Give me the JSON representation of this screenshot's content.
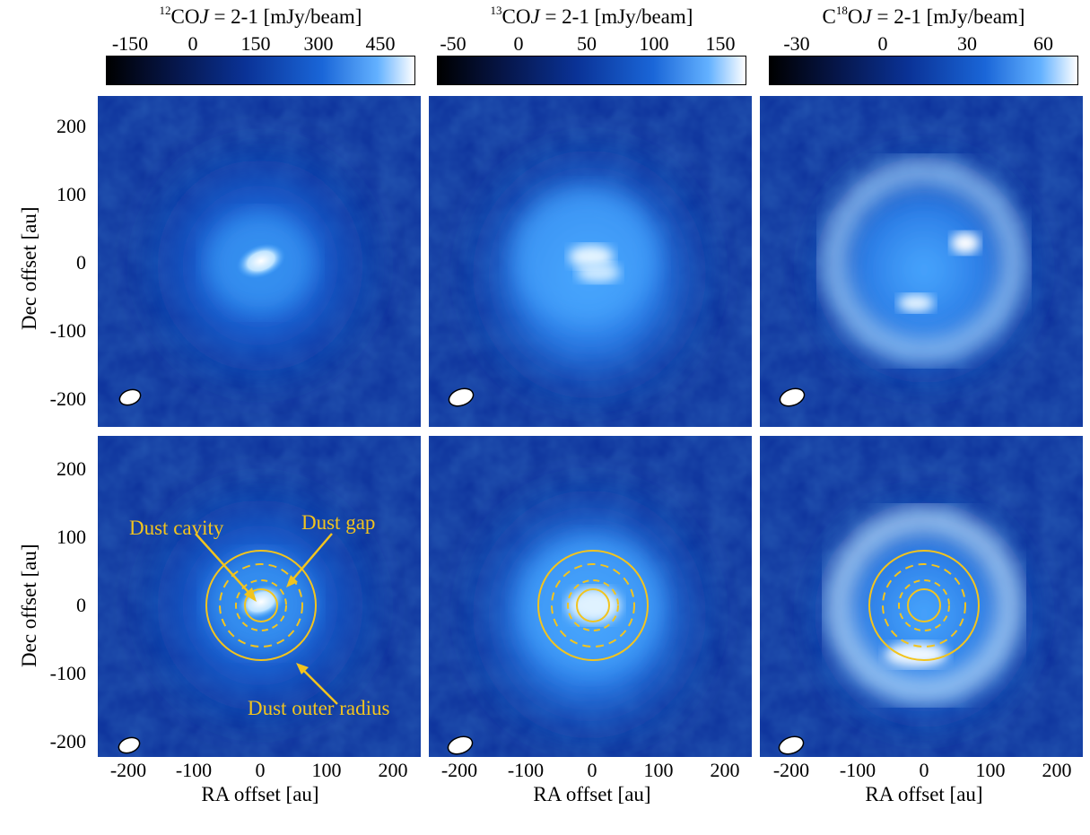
{
  "colorbars": [
    {
      "iso": "12",
      "mol_pre": "",
      "mol_post": "CO",
      "line": "J",
      "trans": "= 2-1 [mJy/beam]",
      "ticks": [
        "-150",
        "0",
        "150",
        "300",
        "450"
      ]
    },
    {
      "iso": "13",
      "mol_pre": "",
      "mol_post": "CO",
      "line": "J",
      "trans": "= 2-1 [mJy/beam]",
      "ticks": [
        "-50",
        "0",
        "50",
        "100",
        "150"
      ]
    },
    {
      "iso": "18",
      "mol_pre": "C",
      "mol_post": "O",
      "line": "J",
      "trans": "= 2-1 [mJy/beam]",
      "ticks": [
        "-30",
        "0",
        "30",
        "60"
      ]
    }
  ],
  "axes": {
    "ylabel": "Dec offset [au]",
    "xlabel": "RA offset [au]",
    "yticks": [
      "200",
      "100",
      "0",
      "-100",
      "-200"
    ],
    "xticks": [
      "-200",
      "-100",
      "0",
      "100",
      "200"
    ]
  },
  "annotations": {
    "cavity": "Dust cavity",
    "gap": "Dust gap",
    "outer": "Dust outer radius"
  },
  "colors": {
    "annotation": "#f2c41e",
    "map_low": "#000000",
    "map_mid": "#1e5fd6",
    "map_high": "#ffffff"
  }
}
